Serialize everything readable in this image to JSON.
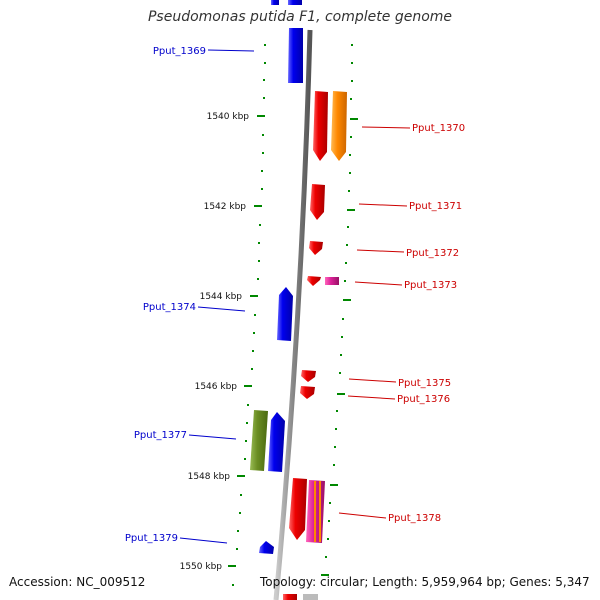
{
  "title": "Pseudomonas putida F1, complete genome",
  "accession_text": "Accession: NC_009512",
  "topology_text": "Topology: circular; Length: 5,959,964 bp; Genes: 5,347",
  "colors": {
    "forward": "#dd0000",
    "reverse": "#0000dd",
    "backbone": "#888888",
    "tick": "#008800",
    "orange": "#ff8800",
    "magenta": "#dd2299",
    "olive": "#6b8e23"
  },
  "scale_labels": [
    "1540 kbp",
    "1542 kbp",
    "1544 kbp",
    "1546 kbp",
    "1548 kbp",
    "1550 kbp"
  ],
  "gene_labels": [
    {
      "text": "Pput_1369",
      "strand": "reverse"
    },
    {
      "text": "Pput_1370",
      "strand": "forward"
    },
    {
      "text": "Pput_1371",
      "strand": "forward"
    },
    {
      "text": "Pput_1372",
      "strand": "forward"
    },
    {
      "text": "Pput_1373",
      "strand": "forward"
    },
    {
      "text": "Pput_1374",
      "strand": "reverse"
    },
    {
      "text": "Pput_1375",
      "strand": "forward"
    },
    {
      "text": "Pput_1376",
      "strand": "forward"
    },
    {
      "text": "Pput_1377",
      "strand": "reverse"
    },
    {
      "text": "Pput_1378",
      "strand": "forward"
    },
    {
      "text": "Pput_1379",
      "strand": "reverse"
    }
  ]
}
